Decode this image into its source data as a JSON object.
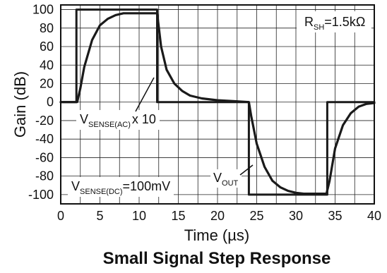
{
  "chart_data": {
    "type": "line",
    "title": "Small Signal Step Response",
    "xlabel": "Time (µs)",
    "ylabel": "Gain (dB)",
    "xlim": [
      0,
      40
    ],
    "ylim": [
      -110,
      105
    ],
    "xticks": [
      0,
      5,
      10,
      15,
      20,
      25,
      30,
      35,
      40
    ],
    "yticks": [
      100,
      80,
      60,
      40,
      20,
      0,
      -20,
      -40,
      -60,
      -80,
      -100
    ],
    "grid": true,
    "series": [
      {
        "name": "VSENSE(AC) x 10",
        "x": [
          0,
          2.0,
          2.0,
          12.3,
          12.3,
          24.0,
          24.0,
          34.0,
          34.0,
          40
        ],
        "y": [
          0,
          0,
          100,
          100,
          0,
          0,
          -100,
          -100,
          0,
          0
        ]
      },
      {
        "name": "VOUT",
        "x": [
          0,
          2.1,
          2.5,
          3.0,
          4.0,
          5.0,
          6.0,
          7.0,
          8.0,
          9.0,
          10.0,
          11.0,
          12.0,
          12.3,
          12.8,
          13.5,
          14.5,
          15.5,
          16.5,
          18.0,
          20.0,
          22.0,
          24.0,
          24.3,
          25.0,
          26.0,
          27.0,
          28.0,
          29.0,
          30.0,
          31.0,
          32.0,
          33.0,
          33.9,
          34.3,
          35.0,
          36.0,
          37.0,
          38.0,
          39.0,
          40.0
        ],
        "y": [
          0,
          0,
          15,
          38,
          67,
          83,
          90,
          94,
          96,
          96,
          96,
          96,
          96,
          96,
          60,
          35,
          20,
          12,
          7,
          4,
          2,
          1,
          0,
          -15,
          -45,
          -70,
          -85,
          -92,
          -96,
          -98,
          -99,
          -99,
          -99,
          -99,
          -85,
          -50,
          -25,
          -12,
          -5,
          -2,
          -1
        ]
      }
    ],
    "annotations": {
      "rsh": {
        "main": "R",
        "sub": "SH",
        "rest": "=1.5kΩ"
      },
      "vsense_ac": {
        "main": "V",
        "sub": "SENSE(AC)",
        "rest": "x 10"
      },
      "vsense_dc": {
        "main": "V",
        "sub": "SENSE(DC)",
        "rest": "=100mV"
      },
      "vout": {
        "main": "V",
        "sub": "OUT"
      }
    },
    "colors": {
      "line": "#1a1a1a",
      "grid": "#222222",
      "background": "#ffffff"
    }
  }
}
